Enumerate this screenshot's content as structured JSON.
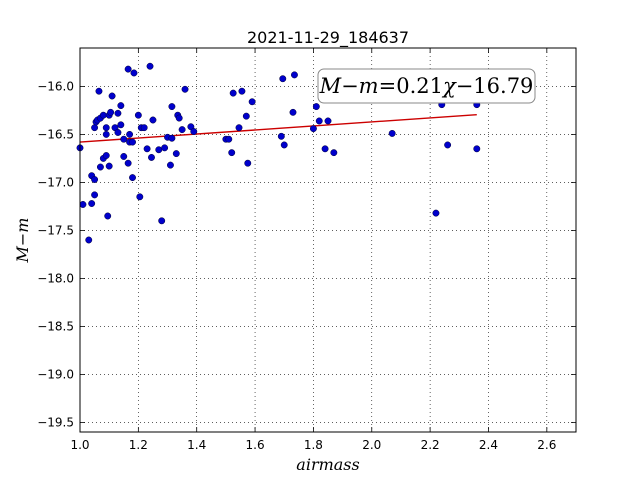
{
  "chart_data": {
    "type": "scatter",
    "title": "2021-11-29_184637",
    "xlabel": "airmass",
    "ylabel": "M−m",
    "xlim": [
      1.0,
      2.7
    ],
    "ylim": [
      -19.6,
      -15.6
    ],
    "xticks": [
      1.0,
      1.2,
      1.4,
      1.6,
      1.8,
      2.0,
      2.2,
      2.4,
      2.6
    ],
    "xtick_labels": [
      "1.0",
      "1.2",
      "1.4",
      "1.6",
      "1.8",
      "2.0",
      "2.2",
      "2.4",
      "2.6"
    ],
    "yticks": [
      -16.0,
      -16.5,
      -17.0,
      -17.5,
      -18.0,
      -18.5,
      -19.0,
      -19.5
    ],
    "ytick_labels": [
      "−16.0",
      "−16.5",
      "−17.0",
      "−17.5",
      "−18.0",
      "−18.5",
      "−19.0",
      "−19.5"
    ],
    "grid": true,
    "point_color": "#0000cc",
    "fit_color": "#cc0000",
    "fit": {
      "slope": 0.21,
      "intercept": -16.79,
      "x_range": [
        1.0,
        2.36
      ]
    },
    "fit_label": {
      "lhs": "M−m",
      "eq": "=",
      "coef": "0.21",
      "var": "χ",
      "const": "−16.79"
    },
    "points": [
      [
        1.0,
        -16.64
      ],
      [
        1.01,
        -17.23
      ],
      [
        1.03,
        -17.6
      ],
      [
        1.04,
        -17.22
      ],
      [
        1.04,
        -16.93
      ],
      [
        1.05,
        -16.97
      ],
      [
        1.05,
        -16.43
      ],
      [
        1.055,
        -16.37
      ],
      [
        1.05,
        -17.13
      ],
      [
        1.06,
        -16.35
      ],
      [
        1.065,
        -16.05
      ],
      [
        1.07,
        -16.33
      ],
      [
        1.07,
        -16.84
      ],
      [
        1.08,
        -16.75
      ],
      [
        1.08,
        -16.3
      ],
      [
        1.09,
        -16.72
      ],
      [
        1.09,
        -16.43
      ],
      [
        1.09,
        -16.5
      ],
      [
        1.095,
        -17.35
      ],
      [
        1.1,
        -16.83
      ],
      [
        1.1,
        -16.3
      ],
      [
        1.105,
        -16.27
      ],
      [
        1.11,
        -16.1
      ],
      [
        1.12,
        -16.43
      ],
      [
        1.13,
        -16.48
      ],
      [
        1.13,
        -16.28
      ],
      [
        1.14,
        -16.4
      ],
      [
        1.14,
        -16.2
      ],
      [
        1.15,
        -16.55
      ],
      [
        1.15,
        -16.73
      ],
      [
        1.165,
        -16.8
      ],
      [
        1.165,
        -15.82
      ],
      [
        1.17,
        -16.58
      ],
      [
        1.17,
        -16.5
      ],
      [
        1.18,
        -16.95
      ],
      [
        1.18,
        -16.58
      ],
      [
        1.185,
        -15.86
      ],
      [
        1.2,
        -16.3
      ],
      [
        1.205,
        -17.15
      ],
      [
        1.21,
        -16.43
      ],
      [
        1.22,
        -16.43
      ],
      [
        1.23,
        -16.65
      ],
      [
        1.24,
        -15.79
      ],
      [
        1.245,
        -16.74
      ],
      [
        1.25,
        -16.35
      ],
      [
        1.27,
        -16.66
      ],
      [
        1.28,
        -17.4
      ],
      [
        1.29,
        -16.64
      ],
      [
        1.3,
        -16.53
      ],
      [
        1.31,
        -16.82
      ],
      [
        1.315,
        -16.21
      ],
      [
        1.315,
        -16.54
      ],
      [
        1.33,
        -16.7
      ],
      [
        1.335,
        -16.3
      ],
      [
        1.34,
        -16.33
      ],
      [
        1.35,
        -16.45
      ],
      [
        1.36,
        -16.03
      ],
      [
        1.38,
        -16.42
      ],
      [
        1.39,
        -16.47
      ],
      [
        1.5,
        -16.55
      ],
      [
        1.51,
        -16.55
      ],
      [
        1.52,
        -16.69
      ],
      [
        1.525,
        -16.07
      ],
      [
        1.545,
        -16.43
      ],
      [
        1.555,
        -16.05
      ],
      [
        1.57,
        -16.31
      ],
      [
        1.575,
        -16.8
      ],
      [
        1.59,
        -16.16
      ],
      [
        1.69,
        -16.52
      ],
      [
        1.695,
        -15.92
      ],
      [
        1.7,
        -16.61
      ],
      [
        1.73,
        -16.27
      ],
      [
        1.735,
        -15.88
      ],
      [
        1.8,
        -16.44
      ],
      [
        1.81,
        -16.21
      ],
      [
        1.82,
        -16.36
      ],
      [
        1.84,
        -16.65
      ],
      [
        1.85,
        -16.36
      ],
      [
        1.87,
        -16.69
      ],
      [
        2.07,
        -16.49
      ],
      [
        2.22,
        -17.32
      ],
      [
        2.24,
        -16.19
      ],
      [
        2.26,
        -16.61
      ],
      [
        2.36,
        -16.19
      ],
      [
        2.36,
        -16.65
      ]
    ]
  }
}
